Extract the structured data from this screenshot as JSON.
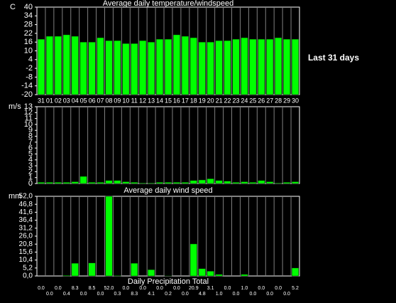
{
  "side_label": "Last 31 days",
  "chart_data": [
    {
      "type": "bar",
      "title": "Average daily temperature/windspeed",
      "y_label": "C",
      "color": "#00ff00",
      "categories": [
        "31",
        "01",
        "02",
        "03",
        "04",
        "05",
        "06",
        "07",
        "08",
        "09",
        "10",
        "11",
        "12",
        "13",
        "14",
        "15",
        "16",
        "17",
        "18",
        "19",
        "20",
        "21",
        "22",
        "23",
        "24",
        "25",
        "26",
        "27",
        "28",
        "29",
        "30"
      ],
      "values": [
        18,
        20,
        20,
        21,
        20,
        16,
        16,
        19,
        17,
        17,
        15,
        15,
        17,
        16,
        18,
        18,
        21,
        20,
        19,
        16,
        16,
        17,
        17,
        18,
        19,
        18,
        18,
        18,
        19,
        18,
        18
      ],
      "ylim": [
        -20,
        40
      ],
      "yticks": [
        40,
        34,
        28,
        22,
        16,
        10,
        4,
        -2,
        -8,
        -14,
        -20
      ]
    },
    {
      "type": "bar",
      "title": "Average daily wind speed",
      "y_label": "m/s",
      "color": "#00ff00",
      "values": [
        0.2,
        0.2,
        0.2,
        0.2,
        0.3,
        1.2,
        0.2,
        0.2,
        0.5,
        0.5,
        0.3,
        0.2,
        0.1,
        0.1,
        0.2,
        0.2,
        0.2,
        0.2,
        0.5,
        0.6,
        0.8,
        0.5,
        0.4,
        0.2,
        0.3,
        0.2,
        0.5,
        0.3,
        0.1,
        0.2,
        0.3
      ],
      "ylim": [
        0,
        13
      ],
      "yticks": [
        13,
        12,
        11,
        10,
        9,
        8,
        7,
        6,
        5,
        4,
        3,
        2,
        1,
        0
      ]
    },
    {
      "type": "bar",
      "title": "Daily Precipitation Total",
      "y_label": "mm",
      "color": "#00ff00",
      "values": [
        0,
        0,
        0,
        0.4,
        8.3,
        0,
        8.5,
        0,
        52,
        0.3,
        0,
        8.3,
        0,
        4.1,
        0,
        0.2,
        0,
        0,
        20.9,
        4.8,
        3.1,
        1,
        0,
        0,
        1,
        0,
        0,
        0,
        0,
        0,
        5.2
      ],
      "value_labels": [
        "0.0",
        "0.0",
        "0.0",
        "0.4",
        "8.3",
        "0.0",
        "8.5",
        "0.0",
        "52.0",
        "0.3",
        "0.0",
        "8.3",
        "0.0",
        "4.1",
        "0.0",
        "0.2",
        "0.0",
        "0.0",
        "20.9",
        "4.8",
        "3.1",
        "1.0",
        "0.0",
        "0.0",
        "1.0",
        "0.0",
        "0.0",
        "0.0",
        "0.0",
        "0.0",
        "5.2"
      ],
      "ylim": [
        0,
        52
      ],
      "yticks": [
        {
          "value": 52,
          "label": "52,0"
        },
        {
          "value": 46.8,
          "label": "46,8"
        },
        {
          "value": 41.6,
          "label": "41,6"
        },
        {
          "value": 36.4,
          "label": "36,4"
        },
        {
          "value": 31.2,
          "label": "31,2"
        },
        {
          "value": 26,
          "label": "26,0"
        },
        {
          "value": 20.8,
          "label": "20,8"
        },
        {
          "value": 15.6,
          "label": "15,6"
        },
        {
          "value": 10.4,
          "label": "10,4"
        },
        {
          "value": 5.2,
          "label": "5,2"
        },
        {
          "value": 0,
          "label": "0,0"
        }
      ]
    }
  ]
}
